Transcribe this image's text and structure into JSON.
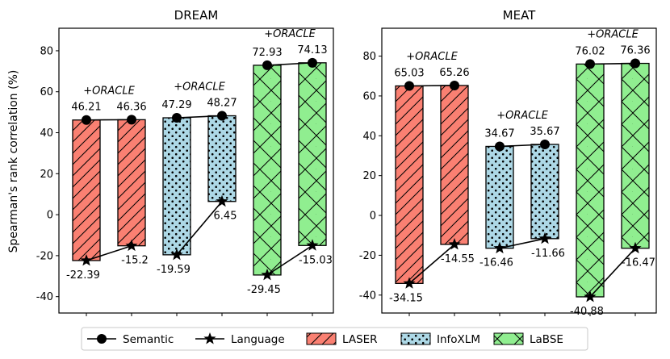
{
  "ylabel": "Spearman's rank correlation (%)",
  "legend": {
    "placement": "bottom-center",
    "entries": [
      {
        "label": "Semantic",
        "kind": "line-circle"
      },
      {
        "label": "Language",
        "kind": "line-star"
      },
      {
        "label": "LASER",
        "kind": "patch",
        "color": "#fa8072",
        "hatch": "diagonal"
      },
      {
        "label": "InfoXLM",
        "kind": "patch",
        "color": "#add8e6",
        "hatch": "dots"
      },
      {
        "label": "LaBSE",
        "kind": "patch",
        "color": "#90ee90",
        "hatch": "cross"
      }
    ]
  },
  "oracle_label": "+ORACLE",
  "colors": {
    "LASER": "#fa8072",
    "InfoXLM": "#add8e6",
    "LaBSE": "#90ee90",
    "oracle_LASER": "#ff0000",
    "oracle_InfoXLM": "#0000ff",
    "oracle_LaBSE": "#008000"
  },
  "chart_data": [
    {
      "type": "bar",
      "title": "DREAM",
      "ylim": [
        -48,
        91
      ],
      "yticks": [
        -40,
        -20,
        0,
        20,
        40,
        60,
        80
      ],
      "groups": [
        {
          "model": "LASER",
          "semantic": [
            46.21,
            46.36
          ],
          "language": [
            -22.39,
            -15.2
          ],
          "semantic_labels": [
            "46.21",
            "46.36"
          ],
          "language_labels": [
            "-22.39",
            "-15.2"
          ]
        },
        {
          "model": "InfoXLM",
          "semantic": [
            47.29,
            48.27
          ],
          "language": [
            -19.59,
            6.45
          ],
          "semantic_labels": [
            "47.29",
            "48.27"
          ],
          "language_labels": [
            "-19.59",
            "6.45"
          ]
        },
        {
          "model": "LaBSE",
          "semantic": [
            72.93,
            74.13
          ],
          "language": [
            -29.45,
            -15.03
          ],
          "semantic_labels": [
            "72.93",
            "74.13"
          ],
          "language_labels": [
            "-29.45",
            "-15.03"
          ]
        }
      ]
    },
    {
      "type": "bar",
      "title": "MEAT",
      "ylim": [
        -49,
        94
      ],
      "yticks": [
        -40,
        -20,
        0,
        20,
        40,
        60,
        80
      ],
      "groups": [
        {
          "model": "LASER",
          "semantic": [
            65.03,
            65.26
          ],
          "language": [
            -34.15,
            -14.55
          ],
          "semantic_labels": [
            "65.03",
            "65.26"
          ],
          "language_labels": [
            "-34.15",
            "-14.55"
          ]
        },
        {
          "model": "InfoXLM",
          "semantic": [
            34.67,
            35.67
          ],
          "language": [
            -16.46,
            -11.66
          ],
          "semantic_labels": [
            "34.67",
            "35.67"
          ],
          "language_labels": [
            "-16.46",
            "-11.66"
          ]
        },
        {
          "model": "LaBSE",
          "semantic": [
            76.02,
            76.36
          ],
          "language": [
            -40.88,
            -16.47
          ],
          "semantic_labels": [
            "76.02",
            "76.36"
          ],
          "language_labels": [
            "-40.88",
            "-16.47"
          ]
        }
      ]
    }
  ]
}
